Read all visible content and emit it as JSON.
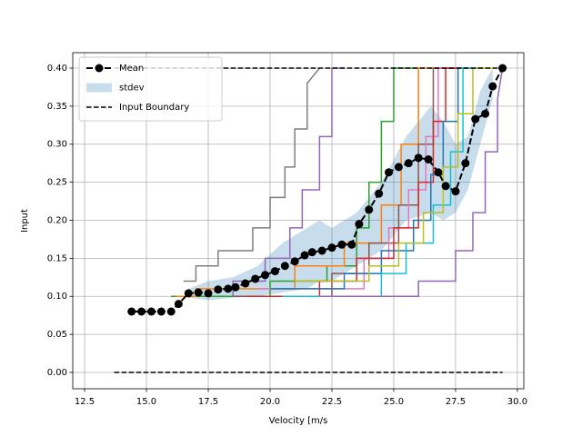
{
  "chart_data": {
    "type": "line",
    "x_label": "Velocity [m/s",
    "y_label": "Input",
    "xlim": [
      12.02,
      30.26
    ],
    "ylim": [
      -0.0215,
      0.4203
    ],
    "xticks": [
      12.5,
      {
        "value": 15,
        "label": "15.0"
      },
      17.5,
      {
        "value": 20,
        "label": "20.0"
      },
      22.5,
      {
        "value": 25,
        "label": "25.0"
      },
      27.5,
      {
        "value": 30,
        "label": "30.0"
      }
    ],
    "yticks": [
      {
        "value": 0,
        "label": "0.00"
      },
      0.05,
      {
        "value": 0.1,
        "label": "0.10"
      },
      0.15,
      {
        "value": 0.2,
        "label": "0.20"
      },
      0.25,
      {
        "value": 0.3,
        "label": "0.30"
      },
      0.35,
      {
        "value": 0.4,
        "label": "0.40"
      }
    ],
    "grid": true,
    "legend_position": "upper left",
    "runs": [
      {
        "color": "#7f7f7f",
        "x": [
          16.5,
          17.0,
          17.0,
          17.9,
          17.9,
          19.3,
          19.3,
          20.0,
          20.0,
          20.6,
          20.6,
          21.0,
          21.0,
          21.5,
          21.5,
          22.0
        ],
        "y": [
          0.12,
          0.12,
          0.14,
          0.14,
          0.16,
          0.16,
          0.19,
          0.19,
          0.23,
          0.23,
          0.27,
          0.27,
          0.32,
          0.32,
          0.38,
          0.4
        ]
      },
      {
        "color": "#9467bd",
        "x": [
          17.8,
          18.5,
          18.5,
          19.8,
          19.8,
          20.8,
          20.8,
          21.3,
          21.3,
          22.0,
          22.0,
          22.5,
          22.5,
          23.0
        ],
        "y": [
          0.1,
          0.1,
          0.12,
          0.12,
          0.15,
          0.15,
          0.19,
          0.19,
          0.24,
          0.24,
          0.31,
          0.31,
          0.4,
          0.4
        ]
      },
      {
        "color": "#2ca02c",
        "x": [
          16.0,
          20.0,
          20.0,
          22.3,
          22.3,
          23.5,
          23.5,
          24.0,
          24.0,
          24.5,
          24.5,
          25.0,
          25.0,
          26.0
        ],
        "y": [
          0.1,
          0.1,
          0.12,
          0.12,
          0.14,
          0.14,
          0.19,
          0.19,
          0.25,
          0.25,
          0.33,
          0.33,
          0.4,
          0.4
        ]
      },
      {
        "color": "#ff7f0e",
        "x": [
          16.2,
          17.0,
          17.0,
          21.0,
          21.0,
          23.0,
          23.0,
          24.5,
          24.5,
          25.3,
          25.3,
          26.0,
          26.0,
          27.0
        ],
        "y": [
          0.1,
          0.1,
          0.11,
          0.11,
          0.14,
          0.14,
          0.17,
          0.17,
          0.22,
          0.22,
          0.3,
          0.3,
          0.4,
          0.4
        ]
      },
      {
        "color": "#8c564b",
        "x": [
          18.5,
          22.5,
          22.5,
          24.0,
          24.0,
          25.2,
          25.2,
          26.0,
          26.0,
          26.6,
          26.6,
          27.5
        ],
        "y": [
          0.1,
          0.1,
          0.13,
          0.13,
          0.17,
          0.17,
          0.22,
          0.22,
          0.3,
          0.3,
          0.4,
          0.4
        ]
      },
      {
        "color": "#e377c2",
        "x": [
          19.5,
          23.8,
          23.8,
          24.8,
          24.8,
          25.6,
          25.6,
          26.3,
          26.3,
          26.8,
          26.8,
          27.3
        ],
        "y": [
          0.11,
          0.11,
          0.15,
          0.15,
          0.19,
          0.19,
          0.24,
          0.24,
          0.31,
          0.31,
          0.4,
          0.4
        ]
      },
      {
        "color": "#d62728",
        "x": [
          19.0,
          22.0,
          22.0,
          23.5,
          23.5,
          25.0,
          25.0,
          26.0,
          26.0,
          26.6,
          26.6,
          27.1,
          27.1,
          28.0
        ],
        "y": [
          0.1,
          0.1,
          0.12,
          0.12,
          0.15,
          0.15,
          0.19,
          0.19,
          0.25,
          0.25,
          0.33,
          0.33,
          0.4,
          0.4
        ]
      },
      {
        "color": "#1f77b4",
        "x": [
          20.0,
          23.0,
          23.0,
          24.5,
          24.5,
          25.8,
          25.8,
          26.5,
          26.5,
          27.0,
          27.0,
          27.6,
          27.6,
          28.5
        ],
        "y": [
          0.11,
          0.11,
          0.13,
          0.13,
          0.16,
          0.16,
          0.2,
          0.2,
          0.26,
          0.26,
          0.33,
          0.33,
          0.4,
          0.4
        ]
      },
      {
        "color": "#17becf",
        "x": [
          20.5,
          24.5,
          24.5,
          25.5,
          25.5,
          26.6,
          26.6,
          27.3,
          27.3,
          27.8,
          27.8,
          28.6
        ],
        "y": [
          0.1,
          0.1,
          0.13,
          0.13,
          0.17,
          0.17,
          0.22,
          0.22,
          0.29,
          0.29,
          0.4,
          0.4
        ]
      },
      {
        "color": "#bcbd22",
        "x": [
          21.0,
          24.0,
          24.0,
          25.2,
          25.2,
          26.2,
          26.2,
          27.0,
          27.0,
          27.6,
          27.6,
          28.2,
          28.2,
          29.0
        ],
        "y": [
          0.12,
          0.12,
          0.14,
          0.14,
          0.17,
          0.17,
          0.21,
          0.21,
          0.27,
          0.27,
          0.34,
          0.34,
          0.4,
          0.4
        ]
      },
      {
        "color": "#9467bd",
        "x": [
          22.0,
          26.0,
          26.0,
          27.5,
          27.5,
          28.2,
          28.2,
          28.7,
          28.7,
          29.2,
          29.2,
          29.4
        ],
        "y": [
          0.1,
          0.1,
          0.12,
          0.12,
          0.16,
          0.16,
          0.21,
          0.21,
          0.29,
          0.29,
          0.36,
          0.4
        ]
      }
    ],
    "stdev": {
      "name": "stdev",
      "color": "#1f77b4",
      "x": [
        16.7,
        17.5,
        18.5,
        19.5,
        20.5,
        21.5,
        22.0,
        22.5,
        23.5,
        24.5,
        25.5,
        26.5,
        27.0,
        27.5,
        28.0,
        28.5,
        29.0
      ],
      "lower": [
        0.098,
        0.095,
        0.098,
        0.1,
        0.105,
        0.11,
        0.12,
        0.12,
        0.14,
        0.16,
        0.2,
        0.21,
        0.2,
        0.21,
        0.24,
        0.3,
        0.36
      ],
      "upper": [
        0.11,
        0.12,
        0.125,
        0.14,
        0.17,
        0.19,
        0.2,
        0.19,
        0.21,
        0.25,
        0.31,
        0.35,
        0.33,
        0.3,
        0.31,
        0.37,
        0.4
      ]
    },
    "mean": {
      "name": "Mean",
      "color": "#000000",
      "x": [
        14.4,
        14.8,
        15.2,
        15.6,
        16.0,
        16.3,
        16.7,
        17.1,
        17.5,
        17.9,
        18.3,
        18.6,
        19.0,
        19.4,
        19.8,
        20.2,
        20.6,
        21.0,
        21.4,
        21.7,
        22.1,
        22.5,
        22.9,
        23.3,
        23.6,
        24.0,
        24.4,
        24.8,
        25.2,
        25.6,
        26.0,
        26.4,
        26.8,
        27.1,
        27.5,
        27.9,
        28.3,
        28.7,
        29.0,
        29.4
      ],
      "y": [
        0.08,
        0.08,
        0.08,
        0.08,
        0.08,
        0.09,
        0.104,
        0.105,
        0.104,
        0.109,
        0.11,
        0.112,
        0.117,
        0.123,
        0.128,
        0.133,
        0.14,
        0.146,
        0.154,
        0.158,
        0.16,
        0.164,
        0.168,
        0.168,
        0.195,
        0.214,
        0.235,
        0.263,
        0.27,
        0.275,
        0.282,
        0.28,
        0.263,
        0.245,
        0.238,
        0.275,
        0.333,
        0.34,
        0.376,
        0.4
      ]
    },
    "boundary": {
      "name": "Input Boundary",
      "color": "#000000",
      "x": [
        13.7,
        29.4
      ],
      "lower": [
        0,
        0
      ],
      "upper": [
        0.4,
        0.4
      ]
    }
  }
}
